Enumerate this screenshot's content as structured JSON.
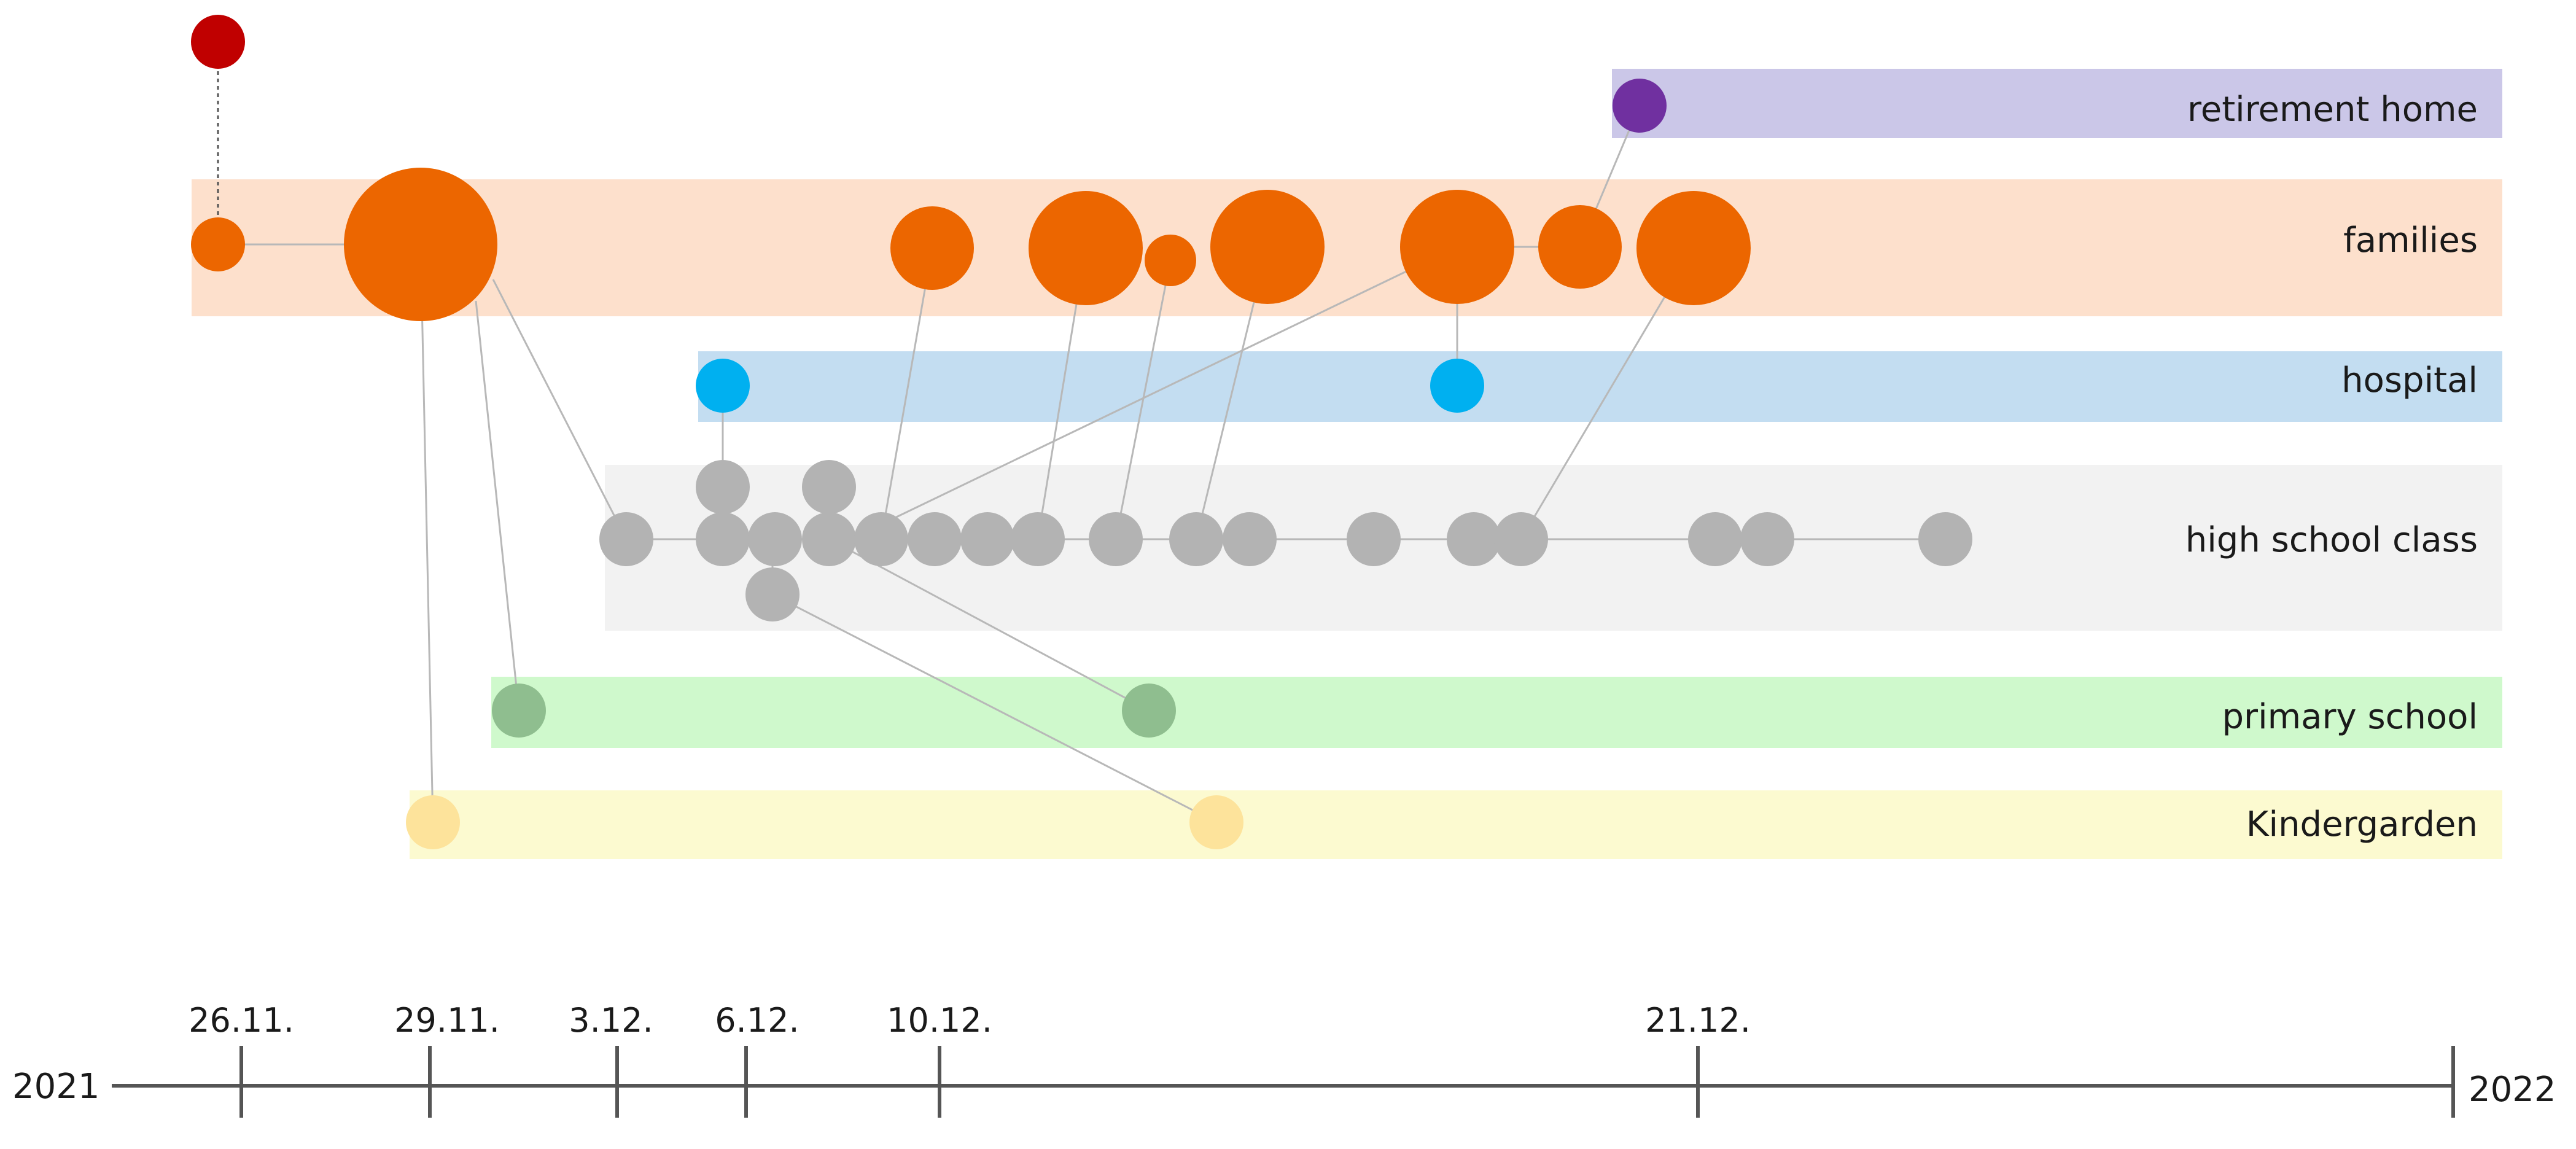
{
  "diagram": {
    "lanes": [
      {
        "id": "retirement",
        "label": "retirement home",
        "color": "#cbc7e8"
      },
      {
        "id": "families",
        "label": "families",
        "color": "#fde0cc"
      },
      {
        "id": "hospital",
        "label": "hospital",
        "color": "#c3ddf1"
      },
      {
        "id": "highschool",
        "label": "high school class",
        "color": "#f2f2f2"
      },
      {
        "id": "primary",
        "label": "primary school",
        "color": "#cff9cc"
      },
      {
        "id": "kindergarden",
        "label": "Kindergarden",
        "color": "#fcfad0"
      }
    ],
    "node_colors": {
      "origin": "#c00000",
      "retirement": "#7030a0",
      "families": "#ec6600",
      "hospital": "#00b0f0",
      "highschool": "#b3b3b3",
      "primary": "#8fbe8f",
      "kindergarden": "#fde39b"
    },
    "timeline": {
      "start_label": "2021",
      "end_label": "2022",
      "ticks": [
        "26.11.",
        "29.11.",
        "3.12.",
        "6.12.",
        "10.12.",
        "21.12."
      ]
    }
  }
}
